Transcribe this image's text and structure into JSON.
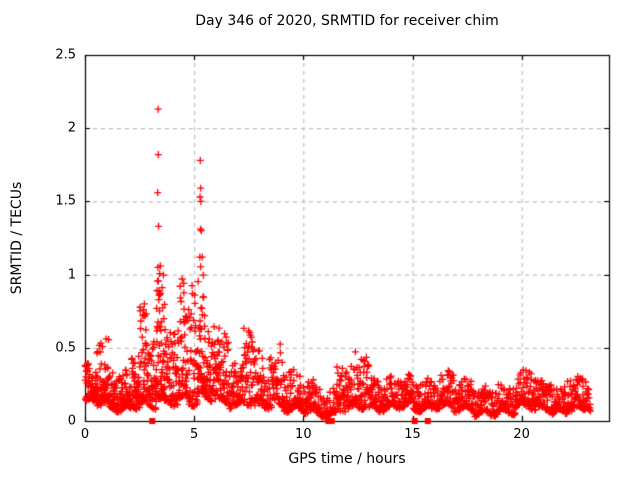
{
  "chart_data": {
    "type": "scatter",
    "title": "Day 346 of 2020, SRMTID for receiver chim",
    "xlabel": "GPS time / hours",
    "ylabel": "SRMTID / TECUs",
    "xlim": [
      0,
      24
    ],
    "ylim": [
      0,
      2.5
    ],
    "xticks": {
      "values": [
        0,
        5,
        10,
        15,
        20
      ],
      "labels": [
        "0",
        "5",
        "10",
        "15",
        "20"
      ]
    },
    "yticks": {
      "values": [
        0,
        0.5,
        1,
        1.5,
        2,
        2.5
      ],
      "labels": [
        "0",
        "0.5",
        "1",
        "1.5",
        "2",
        "2.5"
      ]
    },
    "grid": "dashed",
    "legend": "none",
    "marker": {
      "symbol": "plus",
      "size": 7,
      "color": "#ff0000"
    },
    "zero_marker": {
      "symbol": "filled-square",
      "size": 6,
      "color": "#ff0000"
    },
    "outlier_points": [
      [
        3.35,
        2.13
      ],
      [
        3.36,
        1.82
      ],
      [
        3.33,
        1.56
      ],
      [
        3.37,
        1.33
      ],
      [
        3.34,
        1.05
      ],
      [
        3.45,
        1.06
      ],
      [
        5.28,
        1.78
      ],
      [
        5.3,
        1.59
      ],
      [
        5.27,
        1.53
      ],
      [
        5.31,
        1.5
      ],
      [
        5.29,
        1.31
      ],
      [
        5.33,
        1.3
      ],
      [
        5.26,
        1.12
      ],
      [
        5.37,
        1.12
      ],
      [
        4.45,
        0.97
      ],
      [
        4.52,
        0.94
      ],
      [
        2.72,
        0.8
      ],
      [
        2.68,
        0.76
      ]
    ],
    "zero_points": [
      [
        3.08,
        0
      ],
      [
        11.15,
        0
      ],
      [
        11.3,
        0
      ],
      [
        15.1,
        0
      ],
      [
        15.7,
        0
      ]
    ],
    "density_bands_format": [
      "t_start_hours",
      "t_end_hours",
      "y_low_TECU",
      "y_high_TECU",
      "n_points"
    ],
    "density_bands": [
      [
        0.0,
        0.5,
        0.13,
        0.38,
        60
      ],
      [
        0.5,
        1.1,
        0.12,
        0.55,
        70
      ],
      [
        1.1,
        2.1,
        0.08,
        0.33,
        110
      ],
      [
        2.1,
        2.5,
        0.1,
        0.46,
        50
      ],
      [
        2.5,
        2.85,
        0.12,
        0.8,
        50
      ],
      [
        2.85,
        3.25,
        0.1,
        0.56,
        45
      ],
      [
        3.25,
        3.65,
        0.15,
        1.05,
        70
      ],
      [
        3.65,
        4.25,
        0.12,
        0.62,
        65
      ],
      [
        4.25,
        4.75,
        0.15,
        0.97,
        60
      ],
      [
        4.75,
        5.15,
        0.12,
        0.95,
        45
      ],
      [
        5.15,
        5.5,
        0.18,
        1.12,
        55
      ],
      [
        5.5,
        6.1,
        0.15,
        0.66,
        65
      ],
      [
        6.1,
        6.6,
        0.12,
        0.63,
        55
      ],
      [
        6.6,
        7.25,
        0.1,
        0.4,
        60
      ],
      [
        7.25,
        7.75,
        0.12,
        0.65,
        50
      ],
      [
        7.75,
        8.4,
        0.1,
        0.46,
        55
      ],
      [
        8.4,
        9.1,
        0.1,
        0.52,
        60
      ],
      [
        9.1,
        9.9,
        0.08,
        0.35,
        70
      ],
      [
        9.9,
        10.6,
        0.07,
        0.28,
        60
      ],
      [
        10.6,
        11.5,
        0.04,
        0.22,
        65
      ],
      [
        11.5,
        12.35,
        0.08,
        0.4,
        70
      ],
      [
        12.35,
        13.0,
        0.1,
        0.47,
        60
      ],
      [
        13.0,
        14.0,
        0.08,
        0.28,
        85
      ],
      [
        14.0,
        15.0,
        0.1,
        0.3,
        85
      ],
      [
        15.0,
        15.9,
        0.08,
        0.28,
        75
      ],
      [
        15.9,
        16.9,
        0.1,
        0.33,
        85
      ],
      [
        16.9,
        17.8,
        0.08,
        0.28,
        75
      ],
      [
        17.8,
        18.9,
        0.05,
        0.22,
        85
      ],
      [
        18.9,
        19.7,
        0.06,
        0.25,
        65
      ],
      [
        19.7,
        20.6,
        0.1,
        0.36,
        75
      ],
      [
        20.6,
        21.4,
        0.08,
        0.28,
        65
      ],
      [
        21.4,
        22.1,
        0.06,
        0.24,
        60
      ],
      [
        22.1,
        23.15,
        0.08,
        0.3,
        85
      ]
    ]
  },
  "colors": {
    "marker": "#ff0000",
    "grid": "#b4b4b4",
    "border": "#000000",
    "background": "#ffffff",
    "text": "#000000"
  }
}
